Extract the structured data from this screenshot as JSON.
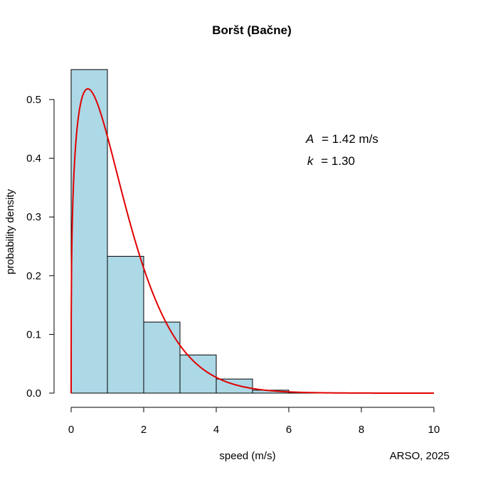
{
  "chart_data": {
    "type": "histogram",
    "title": "Boršt (Bačne)",
    "xlabel": "speed (m/s)",
    "ylabel": "probability density",
    "xlim": [
      0,
      10
    ],
    "ylim": [
      0,
      0.55
    ],
    "x_ticks": [
      "0",
      "2",
      "4",
      "6",
      "8",
      "10"
    ],
    "y_ticks": [
      "0.0",
      "0.1",
      "0.2",
      "0.3",
      "0.4",
      "0.5"
    ],
    "bins": [
      {
        "from": 0,
        "to": 1,
        "density": 0.551
      },
      {
        "from": 1,
        "to": 2,
        "density": 0.233
      },
      {
        "from": 2,
        "to": 3,
        "density": 0.121
      },
      {
        "from": 3,
        "to": 4,
        "density": 0.065
      },
      {
        "from": 4,
        "to": 5,
        "density": 0.024
      },
      {
        "from": 5,
        "to": 6,
        "density": 0.005
      },
      {
        "from": 6,
        "to": 7,
        "density": 0.001
      }
    ],
    "fit": {
      "distribution": "weibull",
      "scale_A": 1.42,
      "shape_k": 1.3,
      "color": "#e00000"
    },
    "bar_color": "#add8e6",
    "annotations": {
      "A_label": "A",
      "A_text": "=  1.42 m/s",
      "k_label": "k",
      "k_text": "=  1.30"
    },
    "credit": "ARSO, 2025",
    "grid": false
  }
}
